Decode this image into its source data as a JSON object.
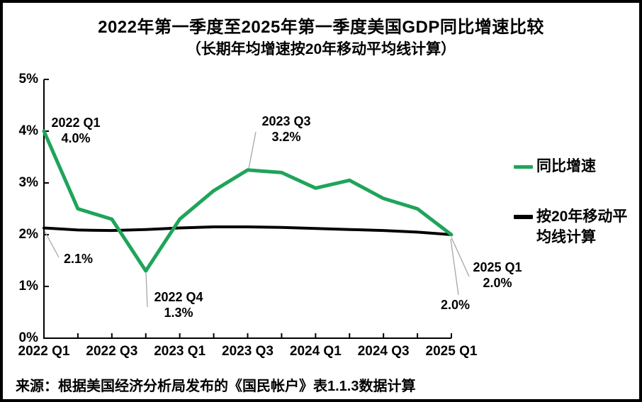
{
  "title": "2022年第一季度至2025年第一季度美国GDP同比增速比较",
  "subtitle": "（长期年均增速按20年移动平均线计算）",
  "source": "来源：根据美国经济分析局发布的《国民帐户》表1.1.3数据计算",
  "colors": {
    "yoy_line": "#1fa45a",
    "ma_line": "#000000",
    "axis": "#000000",
    "leader": "#a6a6a6",
    "frame": "#000000"
  },
  "legend": [
    {
      "label": "同比增速"
    },
    {
      "label_line1": "按20年移动平",
      "label_line2": "均线计算"
    }
  ],
  "annotations": [
    {
      "line1": "2022 Q1",
      "line2": "4.0%"
    },
    {
      "line1": "2.1%"
    },
    {
      "line1": "2022 Q4",
      "line2": "1.3%"
    },
    {
      "line1": "2023 Q3",
      "line2": "3.2%"
    },
    {
      "line1": "2025 Q1",
      "line2": "2.0%"
    },
    {
      "line1": "2.0%"
    }
  ],
  "chart_data": {
    "type": "line",
    "x": [
      "2022 Q1",
      "2022 Q2",
      "2022 Q3",
      "2022 Q4",
      "2023 Q1",
      "2023 Q2",
      "2023 Q3",
      "2023 Q4",
      "2024 Q1",
      "2024 Q2",
      "2024 Q3",
      "2024 Q4",
      "2025 Q1"
    ],
    "x_tick_labels": [
      "2022 Q1",
      "2022 Q3",
      "2023 Q1",
      "2023 Q3",
      "2024 Q1",
      "2024 Q3",
      "2025 Q1"
    ],
    "y_tick_labels": [
      "5%",
      "4%",
      "3%",
      "2%",
      "1%",
      "0%"
    ],
    "ylim": [
      0,
      5
    ],
    "grid": false,
    "legend_position": "right",
    "series": [
      {
        "name": "同比增速",
        "color": "#1fa45a",
        "values": [
          4.0,
          2.5,
          2.3,
          1.3,
          2.3,
          2.85,
          3.25,
          3.2,
          2.9,
          3.05,
          2.7,
          2.5,
          2.0
        ]
      },
      {
        "name": "按20年移动平均线计算",
        "color": "#000000",
        "values": [
          2.13,
          2.09,
          2.08,
          2.1,
          2.13,
          2.15,
          2.15,
          2.14,
          2.12,
          2.1,
          2.08,
          2.05,
          2.0
        ]
      }
    ],
    "point_labels": [
      {
        "x": "2022 Q1",
        "series": "同比增速",
        "value": "4.0%"
      },
      {
        "x": "2022 Q4",
        "series": "同比增速",
        "value": "1.3%"
      },
      {
        "x": "2023 Q3",
        "series": "同比增速",
        "value": "3.2%"
      },
      {
        "x": "2025 Q1",
        "series": "同比增速",
        "value": "2.0%"
      },
      {
        "x": "2022 Q1",
        "series": "按20年移动平均线计算",
        "value": "2.1%"
      },
      {
        "x": "2025 Q1",
        "series": "按20年移动平均线计算",
        "value": "2.0%"
      }
    ]
  }
}
